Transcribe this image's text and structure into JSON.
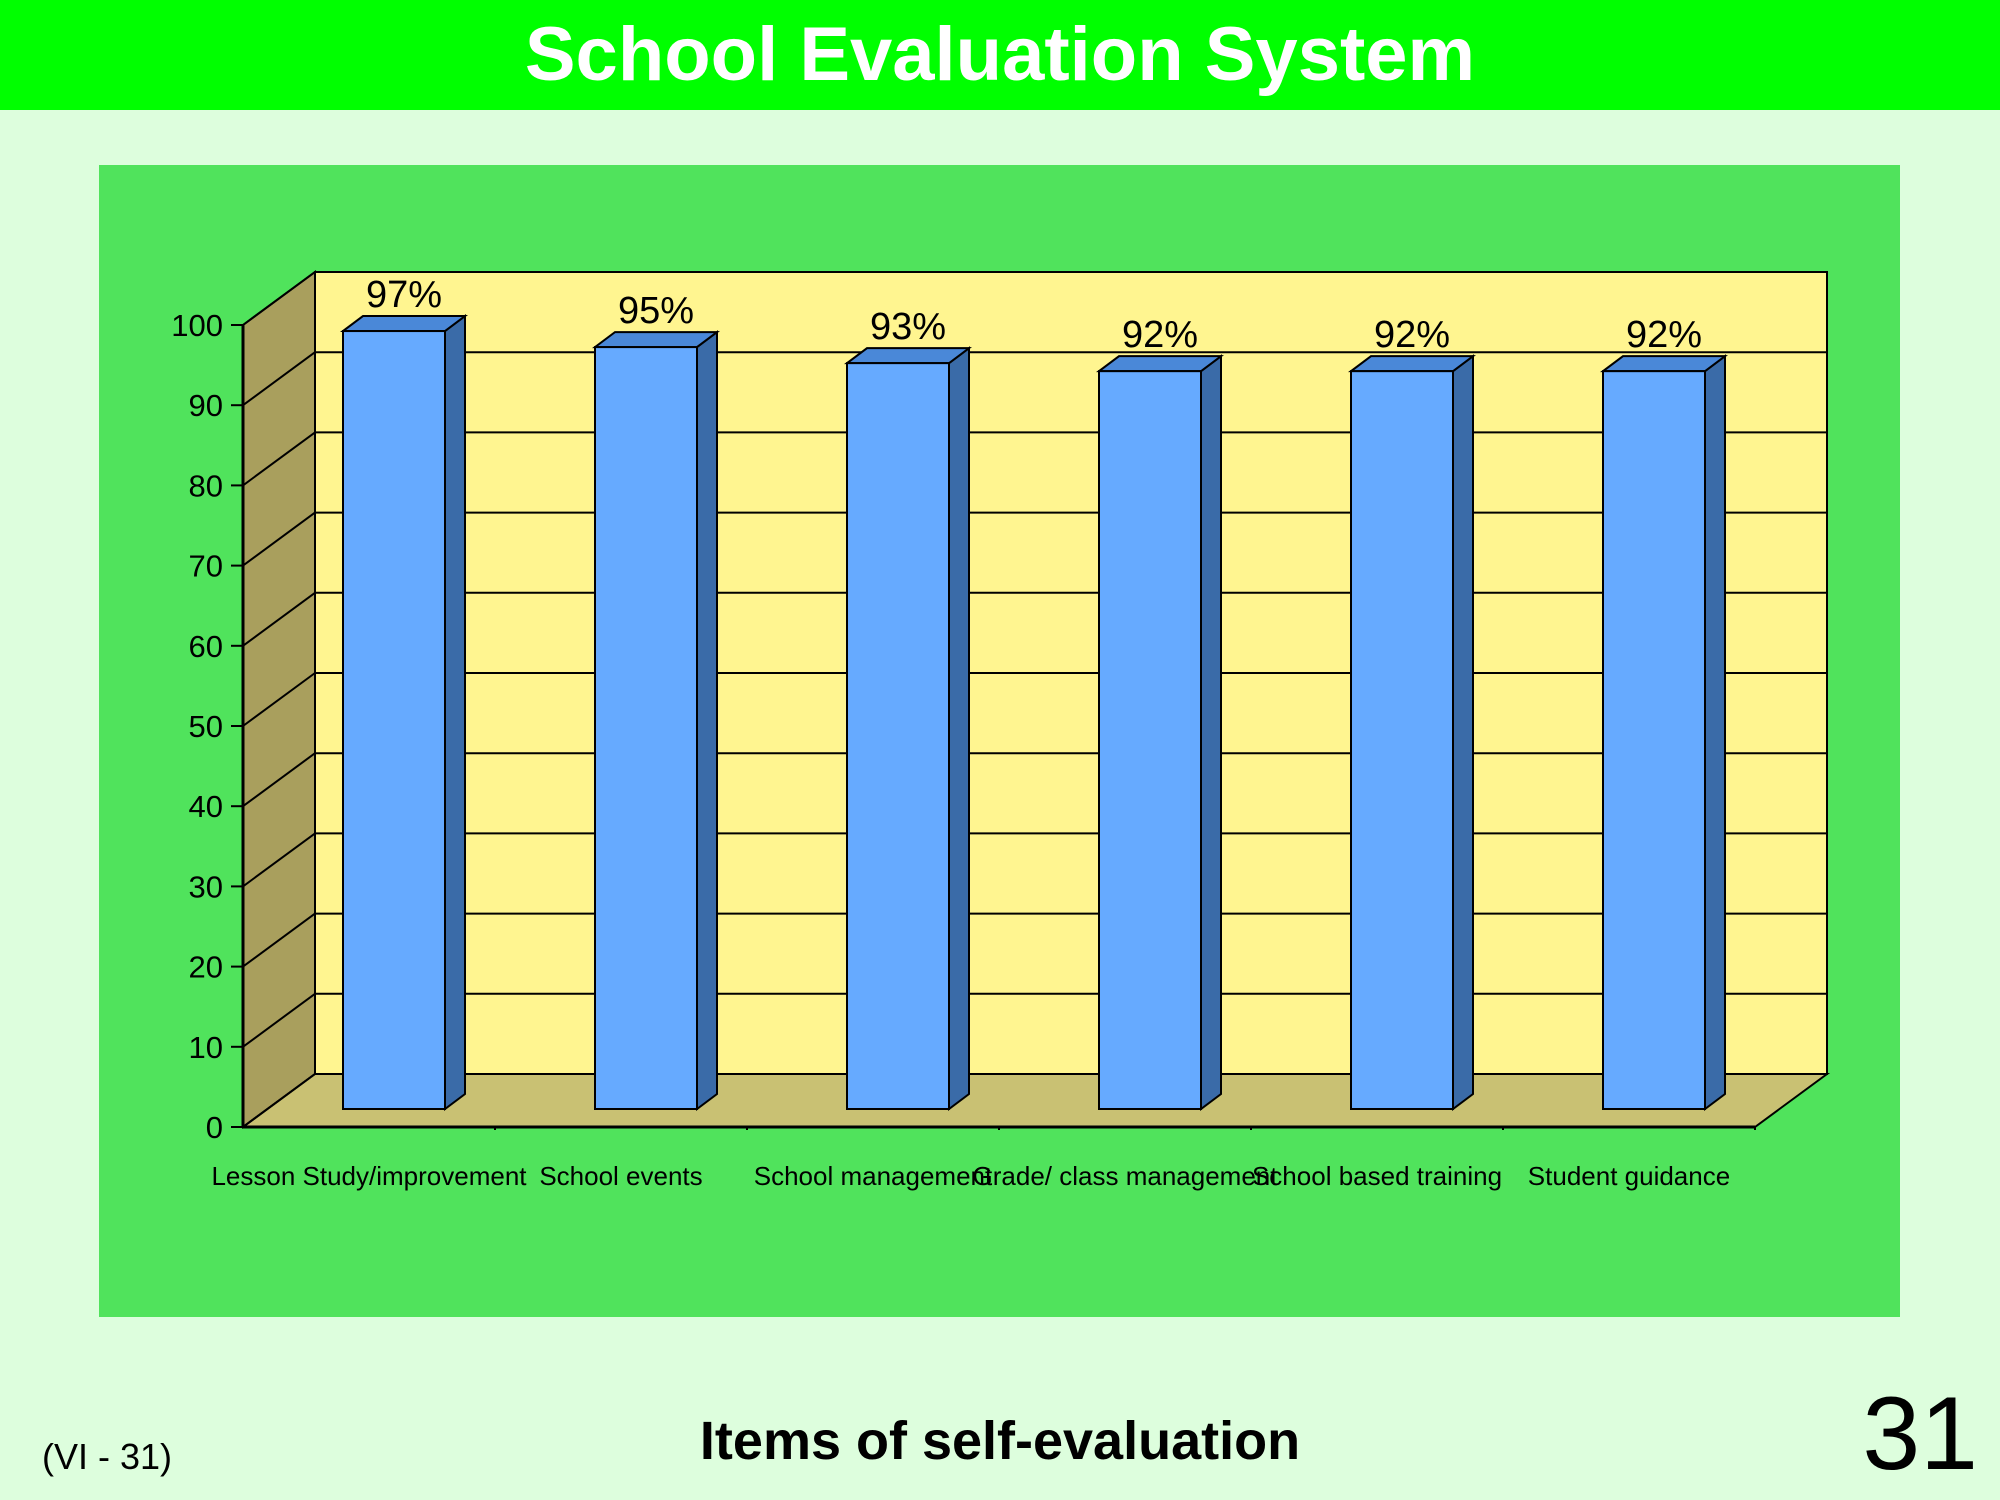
{
  "slide": {
    "title": "School Evaluation System",
    "caption": "Items of self-evaluation",
    "reference": "(VI - 31)",
    "page_number": "31"
  },
  "colors": {
    "title_bar": "#00FF00",
    "panel": "#50E35C",
    "background": "#DDFEDD",
    "plot_back": "#FFF590",
    "plot_side": "#A99F5D",
    "plot_floor": "#C9C173",
    "bar_front": "#66AAFF",
    "bar_side": "#3A6BA8",
    "bar_top": "#4A88D8"
  },
  "chart_data": {
    "type": "bar",
    "categories": [
      "Lesson Study/improvement",
      "School events",
      "School management",
      "Grade/ class management",
      "School based training",
      "Student guidance"
    ],
    "values": [
      97,
      95,
      93,
      92,
      92,
      92
    ],
    "data_labels": [
      "97%",
      "95%",
      "93%",
      "92%",
      "92%",
      "92%"
    ],
    "ylim": [
      0,
      100
    ],
    "yticks": [
      0,
      10,
      20,
      30,
      40,
      50,
      60,
      70,
      80,
      90,
      100
    ],
    "grid": true,
    "legend": "none",
    "style": "3d"
  }
}
